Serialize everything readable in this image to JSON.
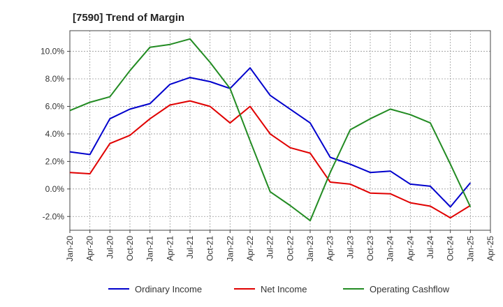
{
  "chart_data": {
    "type": "line",
    "title": "[7590]  Trend of Margin",
    "xlabel": "",
    "ylabel": "",
    "x": [
      "Jan-20",
      "Apr-20",
      "Jul-20",
      "Oct-20",
      "Jan-21",
      "Apr-21",
      "Jul-21",
      "Oct-21",
      "Jan-22",
      "Apr-22",
      "Jul-22",
      "Oct-22",
      "Jan-23",
      "Apr-23",
      "Jul-23",
      "Oct-23",
      "Jan-24",
      "Apr-24",
      "Jul-24",
      "Oct-24",
      "Jan-25"
    ],
    "x_ticks": [
      "Jan-20",
      "Apr-20",
      "Jul-20",
      "Oct-20",
      "Jan-21",
      "Apr-21",
      "Jul-21",
      "Oct-21",
      "Jan-22",
      "Apr-22",
      "Jul-22",
      "Oct-22",
      "Jan-23",
      "Apr-23",
      "Jul-23",
      "Oct-23",
      "Jan-24",
      "Apr-24",
      "Jul-24",
      "Oct-24",
      "Jan-25",
      "Apr-25"
    ],
    "ylim": [
      -3.0,
      11.5
    ],
    "y_ticks": [
      -2.0,
      0.0,
      2.0,
      4.0,
      6.0,
      8.0,
      10.0
    ],
    "y_tick_labels": [
      "-2.0%",
      "0.0%",
      "2.0%",
      "4.0%",
      "6.0%",
      "8.0%",
      "10.0%"
    ],
    "grid": true,
    "legend_position": "bottom",
    "series": [
      {
        "name": "Ordinary Income",
        "color": "#0000cc",
        "values": [
          2.7,
          2.5,
          5.1,
          5.8,
          6.2,
          7.6,
          8.1,
          7.8,
          7.3,
          8.8,
          6.8,
          5.8,
          4.8,
          2.3,
          1.8,
          1.2,
          1.3,
          0.35,
          0.2,
          -1.3,
          0.45
        ]
      },
      {
        "name": "Net Income",
        "color": "#e00000",
        "values": [
          1.2,
          1.1,
          3.3,
          3.9,
          5.1,
          6.1,
          6.4,
          6.0,
          4.8,
          6.0,
          4.0,
          3.0,
          2.6,
          0.5,
          0.35,
          -0.3,
          -0.35,
          -1.0,
          -1.25,
          -2.1,
          -1.2
        ]
      },
      {
        "name": "Operating Cashflow",
        "color": "#228b22",
        "values": [
          5.7,
          6.3,
          6.7,
          8.6,
          10.3,
          10.5,
          10.9,
          9.2,
          7.3,
          3.5,
          -0.2,
          -1.2,
          -2.3,
          1.2,
          4.3,
          5.1,
          5.8,
          5.4,
          4.8,
          1.8,
          -1.3
        ]
      }
    ]
  }
}
